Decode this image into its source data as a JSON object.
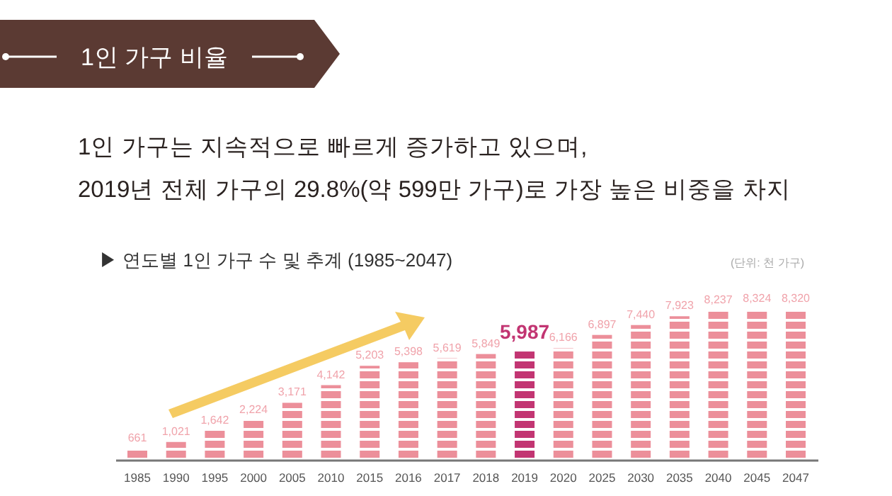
{
  "chart_data": {
    "type": "bar",
    "title": "1인 가구 비율",
    "subtitle": "1인 가구는 지속적으로 빠르게 증가하고 있으며,\n2019년 전체 가구의 29.8%(약 599만 가구)로 가장 높은 비중을 차지",
    "annotations": [
      "▶ 연도별 1인 가구 수 및 추계 (1985~2047)",
      "(단위: 천 가구)"
    ],
    "categories": [
      "1985",
      "1990",
      "1995",
      "2000",
      "2005",
      "2010",
      "2015",
      "2016",
      "2017",
      "2018",
      "2019",
      "2020",
      "2025",
      "2030",
      "2035",
      "2040",
      "2045",
      "2047"
    ],
    "values": [
      661,
      1021,
      1642,
      2224,
      3171,
      4142,
      5203,
      5398,
      5619,
      5849,
      5987,
      6166,
      6897,
      7440,
      7923,
      8237,
      8324,
      8320
    ],
    "colors": [
      "#ec8f9a",
      "#ec8f9a",
      "#ec8f9a",
      "#ec8f9a",
      "#ec8f9a",
      "#ec8f9a",
      "#ec8f9a",
      "#ec8f9a",
      "#ec8f9a",
      "#ec8f9a",
      "#c23572",
      "#ec8f9a",
      "#ec8f9a",
      "#ec8f9a",
      "#ec8f9a",
      "#ec8f9a",
      "#ec8f9a",
      "#ec8f9a"
    ],
    "value_labels": [
      "661",
      "1,021",
      "1,642",
      "2,224",
      "3,171",
      "4,142",
      "5,203",
      "5,398",
      "5,619",
      "5,849",
      "5,987",
      "6,166",
      "6,897",
      "7,440",
      "7,923",
      "8,237",
      "8,324",
      "8,320"
    ]
  }
}
